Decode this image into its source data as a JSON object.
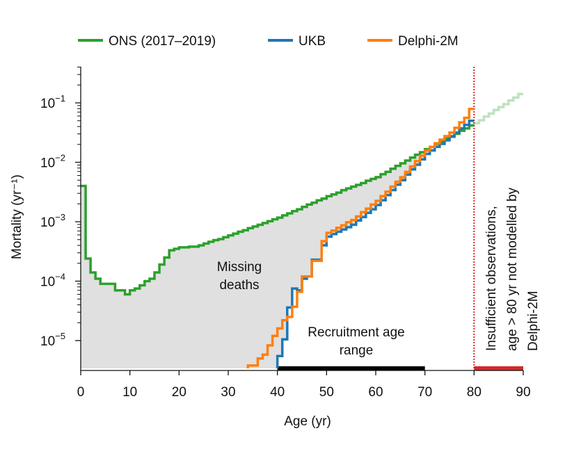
{
  "chart_data": {
    "type": "line",
    "subtype": "step",
    "xlabel": "Age (yr)",
    "ylabel": "Mortality (yr⁻¹)",
    "xlim": [
      0,
      90
    ],
    "ylim": [
      3.4e-06,
      0.2
    ],
    "yscale": "log",
    "x_ticks": [
      "0",
      "10",
      "20",
      "30",
      "40",
      "50",
      "60",
      "70",
      "80",
      "90"
    ],
    "y_ticks": [
      {
        "base": "10",
        "exp": "−1",
        "value": 0.1
      },
      {
        "base": "10",
        "exp": "−2",
        "value": 0.01
      },
      {
        "base": "10",
        "exp": "−3",
        "value": 0.001
      },
      {
        "base": "10",
        "exp": "−4",
        "value": 0.0001
      },
      {
        "base": "10",
        "exp": "−5",
        "value": 1e-05
      }
    ],
    "legend_position": "top",
    "series": [
      {
        "name": "ONS (2017–2019)",
        "color": "#2ca02c",
        "faded_from_age": 80,
        "start_age": 0,
        "values": [
          0.004,
          0.00024,
          0.00014,
          0.00011,
          9e-05,
          9e-05,
          9e-05,
          7e-05,
          7e-05,
          6e-05,
          7e-05,
          7.5e-05,
          8.5e-05,
          0.0001,
          0.00011,
          0.00014,
          0.00019,
          0.00025,
          0.00033,
          0.00035,
          0.00037,
          0.00037,
          0.00038,
          0.00038,
          0.0004,
          0.00043,
          0.00046,
          0.00049,
          0.00051,
          0.00055,
          0.00059,
          0.00063,
          0.00068,
          0.00072,
          0.00078,
          0.00083,
          0.00089,
          0.00095,
          0.00102,
          0.0011,
          0.00117,
          0.00128,
          0.00138,
          0.00151,
          0.00162,
          0.00178,
          0.00195,
          0.00209,
          0.00229,
          0.00245,
          0.00269,
          0.00288,
          0.00309,
          0.00339,
          0.00363,
          0.00389,
          0.00417,
          0.00447,
          0.0049,
          0.00525,
          0.00562,
          0.0063,
          0.0069,
          0.0078,
          0.0087,
          0.0096,
          0.0107,
          0.012,
          0.0134,
          0.0148,
          0.0166,
          0.0182,
          0.0204,
          0.0224,
          0.0251,
          0.0275,
          0.0302,
          0.0339,
          0.0372,
          0.0417,
          0.0457,
          0.051,
          0.059,
          0.066,
          0.076,
          0.085,
          0.095,
          0.11,
          0.123,
          0.141
        ]
      },
      {
        "name": "UKB",
        "color": "#1f77b4",
        "start_age": 40,
        "values": [
          5.5e-06,
          1.05e-05,
          3.6e-05,
          7.5e-05,
          7e-05,
          0.00011,
          0.00012,
          0.00023,
          0.00023,
          0.0004,
          0.00056,
          0.00062,
          0.00068,
          0.00074,
          0.00081,
          0.00089,
          0.00105,
          0.0012,
          0.00141,
          0.00162,
          0.00191,
          0.0023,
          0.0028,
          0.0034,
          0.0042,
          0.005,
          0.0062,
          0.0076,
          0.0091,
          0.0112,
          0.0138,
          0.0158,
          0.0182,
          0.0204,
          0.0234,
          0.0269,
          0.0316,
          0.0372,
          0.0427,
          0.05
        ]
      },
      {
        "name": "Delphi-2M",
        "color": "#ff7f0e",
        "start_age": 34,
        "values": [
          3.8e-06,
          3.8e-06,
          5e-06,
          5.8e-06,
          8.3e-06,
          1.2e-05,
          1.6e-05,
          2.2e-05,
          2.5e-05,
          3.7e-05,
          6.6e-05,
          0.00012,
          0.00012,
          0.00022,
          0.00022,
          0.00047,
          0.00065,
          0.00071,
          0.00079,
          0.00087,
          0.00098,
          0.00107,
          0.00123,
          0.00145,
          0.00166,
          0.00195,
          0.00224,
          0.0027,
          0.0032,
          0.0039,
          0.0047,
          0.0056,
          0.0069,
          0.0085,
          0.0105,
          0.0129,
          0.0158,
          0.0182,
          0.0209,
          0.024,
          0.0275,
          0.0316,
          0.038,
          0.047,
          0.056,
          0.079
        ]
      }
    ],
    "annotations": {
      "missing": [
        "Missing",
        "deaths"
      ],
      "recruitment": [
        "Recruitment age",
        "range"
      ],
      "recruitment_range": [
        40,
        70
      ],
      "cutoff_age": 80,
      "insufficient": [
        "Insufficient observations,",
        "age > 80 yr not modelled by",
        "Delphi-2M"
      ]
    },
    "colors": {
      "shade": "#e0e0e0",
      "cutoff": "#d62728",
      "range_bar": "#000000"
    }
  }
}
